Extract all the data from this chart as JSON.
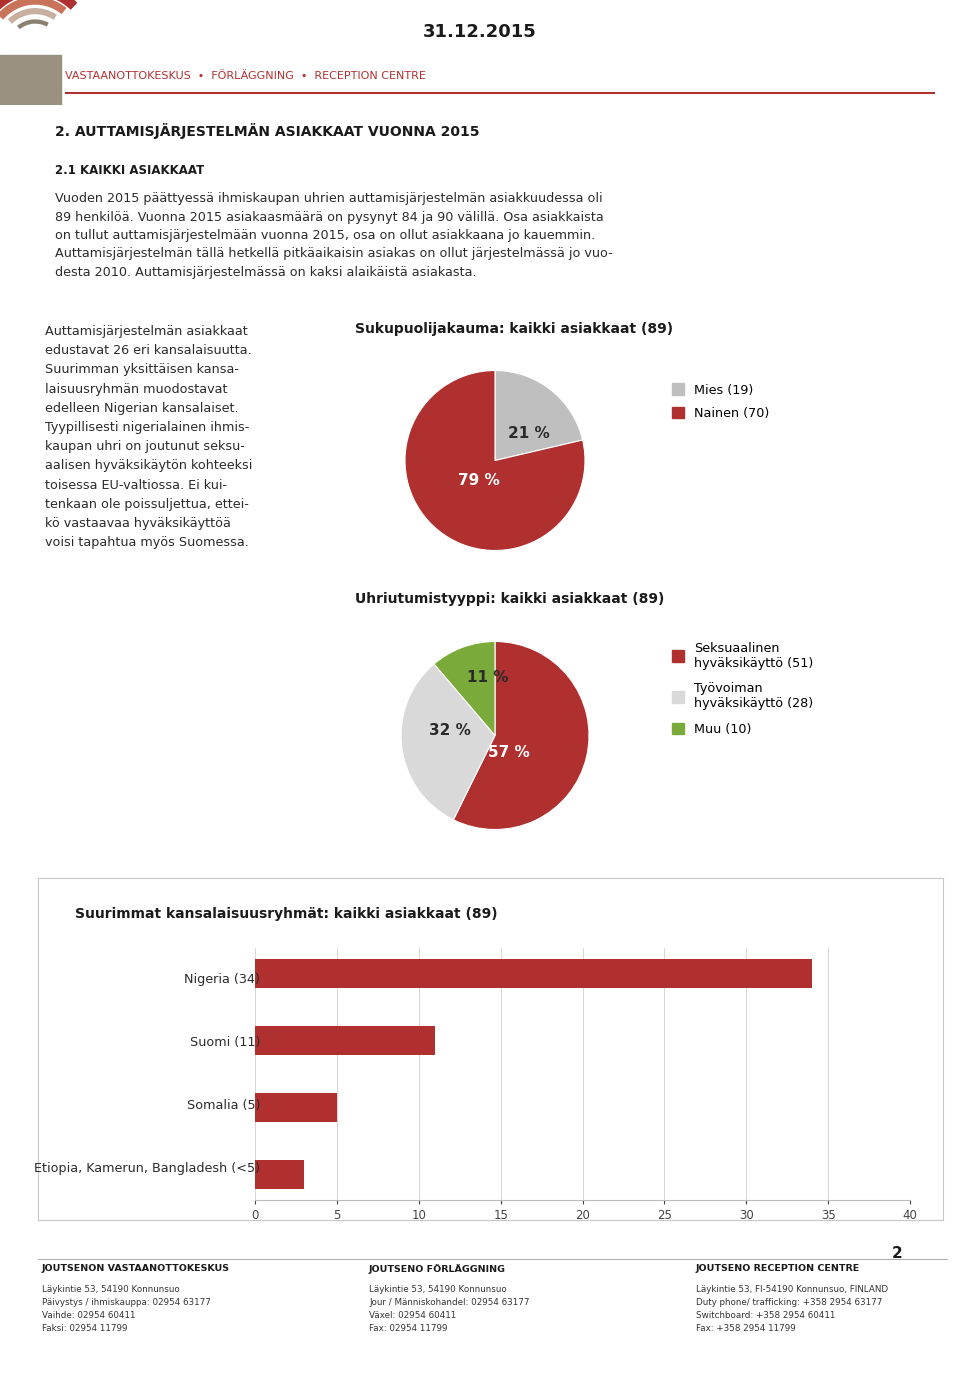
{
  "date": "31.12.2015",
  "header_line": "VASTAANOTTOKESKUS  •  FÖRLÄGGNING  •  RECEPTION CENTRE",
  "section_title": "2. AUTTAMISJÄRJESTELMÄN ASIAKKAAT VUONNA 2015",
  "subsection_title": "2.1 KAIKKI ASIAKKAAT",
  "body_text": "Vuoden 2015 päättyessä ihmiskaupan uhrien auttamisjärjestelmän asiakkuudessa oli\n89 henkilöä. Vuonna 2015 asiakaasmäärä on pysynyt 84 ja 90 välillä. Osa asiakkaista\non tullut auttamisjärjestelmään vuonna 2015, osa on ollut asiakkaana jo kauemmin.\nAuttamisjärjestelmän tällä hetkellä pitkäaikaisin asiakas on ollut järjestelmässä jo vuo-\ndesta 2010. Auttamisjärjestelmässä on kaksi alaikäistä asiakasta.",
  "left_text": "Auttamisjärjestelmän asiakkaat\nedustavat 26 eri kansalaisuutta.\nSuurimman yksittäisen kansa-\nlaisuusryhmän muodostavat\nedelleen Nigerian kansalaiset.\nTyypillisesti nigerialainen ihmis-\nkaupan uhri on joutunut seksu-\naalisen hyväksikäytön kohteeksi\ntoisessa EU-valtiossa. Ei kui-\ntenkaan ole poissuljettua, ettei-\nkö vastaavaa hyväksikäyttöä\nvoisi tapahtua myös Suomessa.",
  "pie1_title": "Sukupuolijakauma: kaikki asiakkaat (89)",
  "pie1_values": [
    19,
    70
  ],
  "pie1_labels": [
    "Mies (19)",
    "Nainen (70)"
  ],
  "pie1_pct": [
    "21 %",
    "79 %"
  ],
  "pie1_colors": [
    "#c0bfbf",
    "#b03030"
  ],
  "pie2_title": "Uhriutumistyyppi: kaikki asiakkaat (89)",
  "pie2_values": [
    51,
    28,
    10
  ],
  "pie2_labels": [
    "Seksuaalinen\nhyväksikäyttö (51)",
    "Työvoiman\nhyväksikäyttö (28)",
    "Muu (10)"
  ],
  "pie2_pct": [
    "57 %",
    "32 %",
    "11 %"
  ],
  "pie2_colors": [
    "#b03030",
    "#d9d9d9",
    "#7aab3a"
  ],
  "bar_title": "Suurimmat kansalaisuusryhmät: kaikki asiakkaat (89)",
  "bar_categories": [
    "Nigeria (34)",
    "Suomi (11)",
    "Somalia (5)",
    "Etiopia, Kamerun, Bangladesh (<5)"
  ],
  "bar_values": [
    34,
    11,
    5,
    3
  ],
  "bar_color": "#b03030",
  "bar_xlim": [
    0,
    40
  ],
  "bar_xticks": [
    0,
    5,
    10,
    15,
    20,
    25,
    30,
    35,
    40
  ],
  "page_number": "2",
  "footer_col1_title": "JOUTSENON VASTAANOTTOKESKUS",
  "footer_col1": "Läykintie 53, 54190 Konnunsuo\nPäivystys / ihmiskauppa: 02954 63177\nVaihde: 02954 60411\nFaksi: 02954 11799",
  "footer_col2_title": "JOUTSENO FÖRLÄGGNING",
  "footer_col2": "Läykintie 53, 54190 Konnunsuo\nJour / Människohandel: 02954 63177\nVäxel: 02954 60411\nFax: 02954 11799",
  "footer_col3_title": "JOUTSENO RECEPTION CENTRE",
  "footer_col3": "Läykintie 53, FI-54190 Konnunsuo, FINLAND\nDuty phone/ trafficking: +358 2954 63177\nSwitchboard: +358 2954 60411\nFax: +358 2954 11799",
  "bg_color": "#ffffff",
  "accent_color": "#b03030",
  "header_color": "#b03030",
  "text_color": "#2b2b2b",
  "logo_stripe_colors": [
    "#b03030",
    "#c8735a",
    "#c8b0a0",
    "#8a8070"
  ]
}
